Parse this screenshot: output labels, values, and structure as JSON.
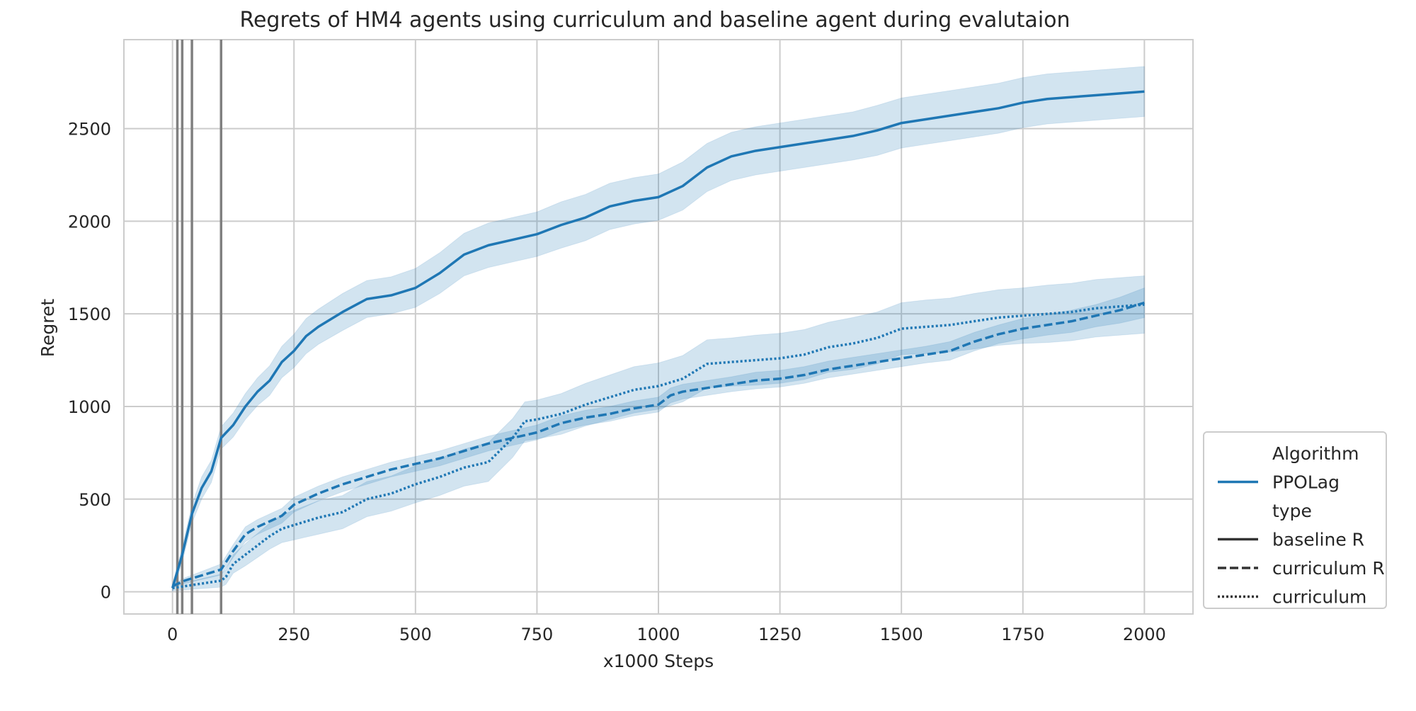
{
  "chart_data": {
    "type": "line",
    "title": "Regrets of HM4 agents using curriculum and baseline agent during evalutaion",
    "xlabel": "x1000 Steps",
    "ylabel": "Regret",
    "xlim": [
      -100,
      2100
    ],
    "ylim": [
      -120,
      2980
    ],
    "xticks": [
      0,
      250,
      500,
      750,
      1000,
      1250,
      1500,
      1750,
      2000
    ],
    "yticks": [
      0,
      500,
      1000,
      1500,
      2000,
      2500
    ],
    "grid": true,
    "vertical_lines": [
      10,
      20,
      40,
      100
    ],
    "legend": {
      "placement": "lower-right outside",
      "entries": [
        {
          "label": "Algorithm",
          "style": "header"
        },
        {
          "label": "PPOLag",
          "style": "color"
        },
        {
          "label": "type",
          "style": "header"
        },
        {
          "label": "baseline R",
          "style": "solid"
        },
        {
          "label": "curriculum R",
          "style": "dashed"
        },
        {
          "label": "curriculum",
          "style": "dotted"
        }
      ]
    },
    "colors": {
      "line": "#1f77b4",
      "band": "#1f77b4",
      "vline": "#808080",
      "grid": "#cccccc",
      "legend_key": "#333333"
    },
    "series": [
      {
        "algorithm": "PPOLag",
        "type": "baseline R",
        "dash": "solid",
        "x": [
          0,
          20,
          40,
          60,
          80,
          100,
          125,
          150,
          175,
          200,
          225,
          250,
          275,
          300,
          350,
          400,
          450,
          500,
          550,
          600,
          650,
          700,
          750,
          800,
          850,
          900,
          950,
          1000,
          1050,
          1100,
          1150,
          1200,
          1250,
          1300,
          1350,
          1400,
          1450,
          1500,
          1550,
          1600,
          1650,
          1700,
          1750,
          1800,
          1850,
          1900,
          1950,
          2000
        ],
        "y": [
          20,
          200,
          420,
          560,
          650,
          830,
          900,
          1000,
          1080,
          1140,
          1240,
          1300,
          1380,
          1430,
          1510,
          1580,
          1600,
          1640,
          1720,
          1820,
          1870,
          1900,
          1930,
          1980,
          2020,
          2080,
          2110,
          2130,
          2190,
          2290,
          2350,
          2380,
          2400,
          2420,
          2440,
          2460,
          2490,
          2530,
          2550,
          2570,
          2590,
          2610,
          2640,
          2660,
          2670,
          2680,
          2690,
          2700
        ],
        "ci_halfwidth": [
          20,
          40,
          50,
          60,
          60,
          60,
          65,
          70,
          75,
          80,
          85,
          90,
          95,
          95,
          100,
          100,
          100,
          105,
          110,
          115,
          120,
          120,
          120,
          125,
          125,
          125,
          125,
          125,
          130,
          130,
          130,
          130,
          130,
          130,
          130,
          130,
          135,
          135,
          135,
          135,
          135,
          135,
          135,
          135,
          135,
          135,
          135,
          135
        ]
      },
      {
        "algorithm": "PPOLag",
        "type": "curriculum R",
        "dash": "dashed",
        "x": [
          0,
          25,
          50,
          75,
          100,
          125,
          150,
          175,
          200,
          225,
          250,
          275,
          300,
          350,
          400,
          450,
          500,
          550,
          600,
          650,
          700,
          750,
          800,
          850,
          900,
          950,
          1000,
          1025,
          1050,
          1100,
          1150,
          1200,
          1250,
          1300,
          1350,
          1400,
          1450,
          1500,
          1550,
          1600,
          1650,
          1700,
          1750,
          1800,
          1850,
          1900,
          1950,
          2000
        ],
        "y": [
          30,
          60,
          80,
          100,
          120,
          220,
          310,
          350,
          380,
          410,
          470,
          500,
          530,
          580,
          620,
          660,
          690,
          720,
          760,
          800,
          830,
          860,
          910,
          940,
          960,
          990,
          1010,
          1060,
          1080,
          1100,
          1120,
          1140,
          1150,
          1170,
          1200,
          1220,
          1240,
          1260,
          1280,
          1300,
          1350,
          1390,
          1420,
          1440,
          1460,
          1490,
          1520,
          1560
        ],
        "ci_halfwidth": [
          10,
          15,
          20,
          25,
          30,
          35,
          40,
          40,
          40,
          40,
          40,
          40,
          40,
          40,
          40,
          40,
          40,
          40,
          40,
          40,
          40,
          40,
          40,
          40,
          40,
          40,
          40,
          40,
          40,
          40,
          40,
          45,
          45,
          45,
          45,
          45,
          45,
          45,
          45,
          50,
          50,
          50,
          55,
          55,
          60,
          60,
          70,
          80
        ]
      },
      {
        "algorithm": "PPOLag",
        "type": "curriculum",
        "dash": "dotted",
        "x": [
          0,
          25,
          50,
          75,
          100,
          110,
          125,
          150,
          175,
          200,
          225,
          250,
          275,
          300,
          350,
          400,
          450,
          500,
          550,
          600,
          650,
          700,
          725,
          750,
          800,
          850,
          900,
          950,
          1000,
          1050,
          1100,
          1150,
          1200,
          1250,
          1300,
          1350,
          1400,
          1450,
          1500,
          1550,
          1600,
          1650,
          1700,
          1750,
          1800,
          1850,
          1900,
          1950,
          2000
        ],
        "y": [
          20,
          30,
          40,
          50,
          60,
          80,
          150,
          200,
          250,
          300,
          340,
          360,
          380,
          400,
          430,
          500,
          530,
          580,
          620,
          670,
          700,
          830,
          920,
          930,
          960,
          1010,
          1050,
          1090,
          1110,
          1150,
          1230,
          1240,
          1250,
          1260,
          1280,
          1320,
          1340,
          1370,
          1420,
          1430,
          1440,
          1460,
          1480,
          1490,
          1500,
          1510,
          1530,
          1540,
          1550
        ],
        "ci_halfwidth": [
          15,
          20,
          25,
          30,
          35,
          40,
          50,
          60,
          65,
          70,
          75,
          80,
          85,
          90,
          90,
          95,
          95,
          100,
          100,
          100,
          105,
          105,
          105,
          105,
          110,
          115,
          120,
          125,
          125,
          125,
          130,
          130,
          135,
          135,
          135,
          135,
          140,
          140,
          140,
          145,
          145,
          150,
          150,
          150,
          155,
          155,
          155,
          155,
          155
        ]
      }
    ]
  }
}
